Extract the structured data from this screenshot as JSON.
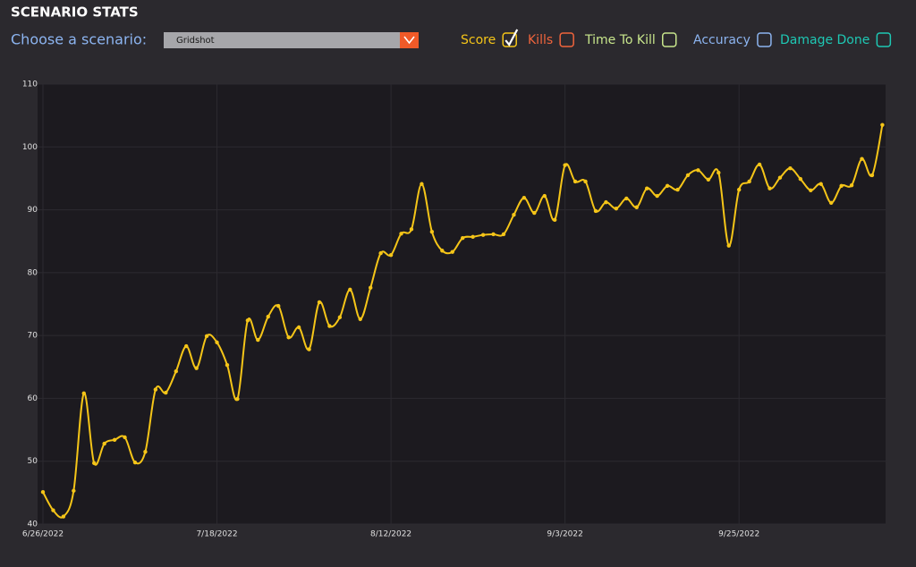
{
  "header": {
    "title": "SCENARIO STATS"
  },
  "selector": {
    "label": "Choose a scenario:",
    "value": "Gridshot"
  },
  "toggles": [
    {
      "label": "Score",
      "color": "#f5c518",
      "checked": true
    },
    {
      "label": "Kills",
      "color": "#f0643c",
      "checked": false
    },
    {
      "label": "Time To Kill",
      "color": "#c8e68c",
      "checked": false
    },
    {
      "label": "Accuracy",
      "color": "#8cb4f0",
      "checked": false
    },
    {
      "label": "Damage Done",
      "color": "#1ec8b4",
      "checked": false
    }
  ],
  "chart_data": {
    "type": "line",
    "categories": [
      "6/26/2022",
      null,
      null,
      null,
      null,
      null,
      null,
      null,
      null,
      null,
      null,
      null,
      null,
      null,
      null,
      null,
      null,
      "7/18/2022",
      null,
      null,
      null,
      null,
      null,
      null,
      null,
      null,
      null,
      null,
      null,
      null,
      null,
      null,
      null,
      null,
      "8/12/2022",
      null,
      null,
      null,
      null,
      null,
      null,
      null,
      null,
      null,
      null,
      null,
      null,
      null,
      null,
      null,
      null,
      "9/3/2022",
      null,
      null,
      null,
      null,
      null,
      null,
      null,
      null,
      null,
      null,
      null,
      null,
      null,
      null,
      null,
      null,
      "9/25/2022",
      null,
      null,
      null,
      null,
      null,
      null,
      null,
      null,
      null,
      null,
      null,
      null,
      null,
      null
    ],
    "series": [
      {
        "name": "Score",
        "color": "#f5c518",
        "values": [
          45.1,
          42.2,
          41.2,
          45.3,
          60.8,
          49.7,
          52.8,
          53.4,
          53.8,
          49.8,
          51.5,
          61.4,
          60.9,
          64.3,
          68.3,
          64.8,
          69.9,
          68.9,
          65.3,
          59.9,
          72.4,
          69.3,
          73.0,
          74.7,
          69.7,
          71.3,
          67.8,
          75.3,
          71.5,
          72.9,
          77.3,
          72.6,
          77.6,
          83.1,
          82.8,
          86.2,
          86.9,
          94.1,
          86.5,
          83.5,
          83.3,
          85.5,
          85.7,
          86.0,
          86.1,
          86.1,
          89.2,
          91.9,
          89.5,
          92.2,
          88.4,
          97.1,
          94.5,
          94.5,
          89.8,
          91.2,
          90.2,
          91.8,
          90.4,
          93.4,
          92.2,
          93.8,
          93.2,
          95.5,
          96.3,
          94.8,
          95.9,
          84.3,
          93.2,
          94.5,
          97.2,
          93.4,
          95.1,
          96.6,
          94.9,
          93.1,
          94.1,
          91.1,
          93.8,
          93.9,
          98.1,
          95.5,
          103.5
        ]
      }
    ],
    "ylim": [
      40,
      110
    ],
    "yticks": [
      40,
      50,
      60,
      70,
      80,
      90,
      100,
      110
    ],
    "grid": true
  }
}
